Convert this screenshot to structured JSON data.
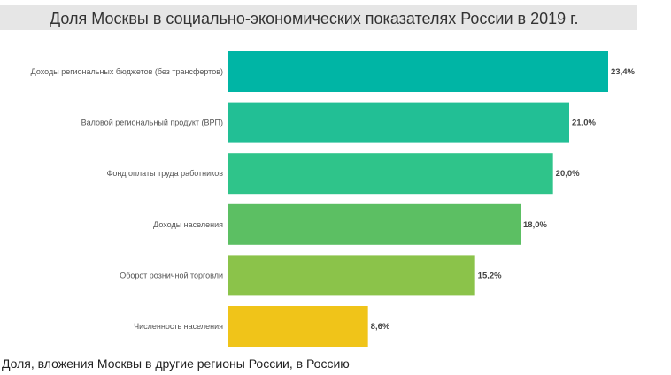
{
  "chart_data": {
    "type": "bar",
    "orientation": "horizontal",
    "title": "Доля Москвы в социально-экономических показателях России в 2019 г.",
    "categories": [
      "Доходы региональных бюджетов (без трансфертов)",
      "Валовой региональный продукт (ВРП)",
      "Фонд оплаты труда работников",
      "Доходы населения",
      "Оборот розничной торговли",
      "Численность населения"
    ],
    "values": [
      23.4,
      21.0,
      20.0,
      18.0,
      15.2,
      8.6
    ],
    "value_labels": [
      "23,4%",
      "21,0%",
      "20,0%",
      "18,0%",
      "15,2%",
      "8,6%"
    ],
    "colors": [
      "#00b5a5",
      "#22bf95",
      "#2fc48a",
      "#5cbf63",
      "#8bc34a",
      "#f0c419"
    ],
    "xlim": [
      0,
      23.4
    ],
    "grid": false
  },
  "caption": "Доля, вложения Москвы в другие регионы России, в Россию"
}
